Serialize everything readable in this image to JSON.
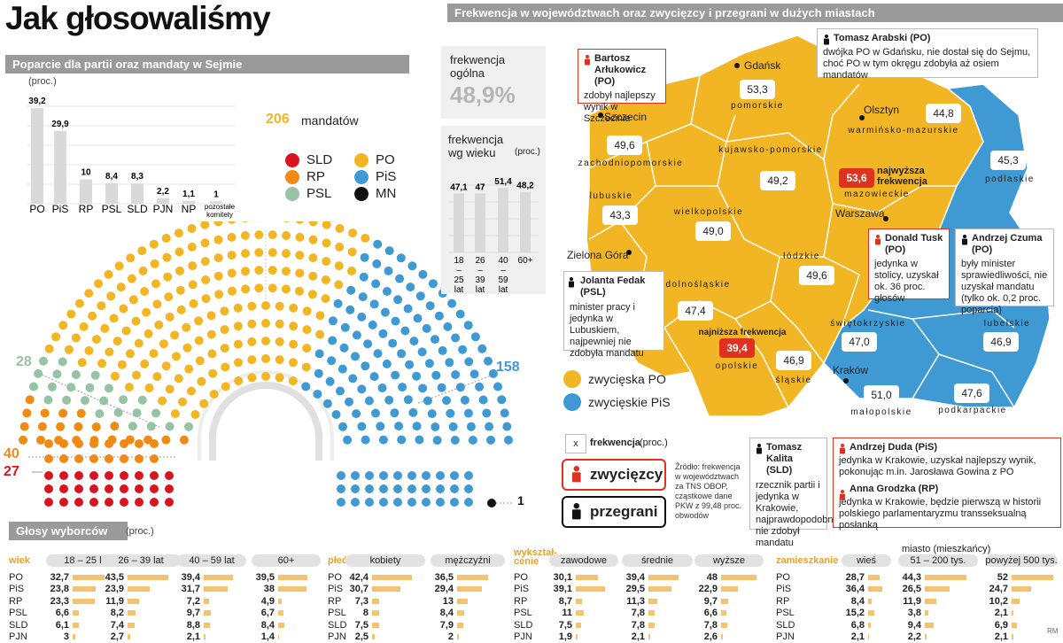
{
  "title": "Jak głosowaliśmy",
  "support_banner": "Poparcie dla partii oraz mandaty w Sejmie",
  "support_unit": "(proc.)",
  "colors": {
    "PO": "#f2b523",
    "PiS": "#3f9ad3",
    "SLD": "#d8141e",
    "RP": "#f08a14",
    "PSL": "#96c2a5",
    "MN": "#111111",
    "bar": "#d9d9d9",
    "light_po": "#f3c374"
  },
  "chart_data": [
    {
      "type": "bar",
      "categories": [
        "PO",
        "PiS",
        "RP",
        "PSL",
        "SLD",
        "PJN",
        "NP",
        "pozostałe komitety"
      ],
      "values": [
        39.2,
        29.9,
        10,
        8.4,
        8.3,
        2.2,
        1.1,
        1
      ],
      "value_labels": [
        "39,2",
        "29,9",
        "10",
        "8,4",
        "8,3",
        "2,2",
        "1,1",
        "1"
      ]
    },
    {
      "type": "seat-distribution",
      "parties": [
        "SLD",
        "RP",
        "PSL",
        "PO",
        "PiS",
        "MN"
      ],
      "seats": {
        "PO": 206,
        "PiS": 158,
        "RP": 40,
        "SLD": 27,
        "PSL": 28,
        "MN": 1
      },
      "mandates_label": "mandatów"
    },
    {
      "type": "bar",
      "categories": [
        "18 – 25 lat",
        "26 – 39 lat",
        "40 – 59 lat",
        "60+"
      ],
      "values": [
        47.1,
        47,
        51.4,
        48.2
      ],
      "value_labels": [
        "47,1",
        "47",
        "51,4",
        "48,2"
      ]
    },
    {
      "type": "map",
      "regions": [
        {
          "name": "pomorskie",
          "value": "53,3",
          "winner": "PO"
        },
        {
          "name": "zachodniopomorskie",
          "value": "49,6",
          "winner": "PO"
        },
        {
          "name": "warmińsko-mazurskie",
          "value": "44,8",
          "winner": "PO"
        },
        {
          "name": "kujawsko-pomorskie",
          "value": "49,2",
          "winner": "PO"
        },
        {
          "name": "podlaskie",
          "value": "45,3",
          "winner": "PiS"
        },
        {
          "name": "mazowieckie",
          "value": "53,6",
          "winner": "PO"
        },
        {
          "name": "lubuskie",
          "value": "43,3",
          "winner": "PO"
        },
        {
          "name": "wielkopolskie",
          "value": "49,0",
          "winner": "PO"
        },
        {
          "name": "łódzkie",
          "value": "49,6",
          "winner": "PO"
        },
        {
          "name": "dolnośląskie",
          "value": "47,4",
          "winner": "PO"
        },
        {
          "name": "opolskie",
          "value": "39,4",
          "winner": "PO"
        },
        {
          "name": "śląskie",
          "value": "46,9",
          "winner": "PO"
        },
        {
          "name": "świętokrzyskie",
          "value": "47,0",
          "winner": "PiS"
        },
        {
          "name": "lubelskie",
          "value": "46,9",
          "winner": "PiS"
        },
        {
          "name": "małopolskie",
          "value": "51,0",
          "winner": "PiS"
        },
        {
          "name": "podkarpackie",
          "value": "47,6",
          "winner": "PiS"
        }
      ]
    },
    {
      "type": "table",
      "groups": [
        {
          "category": "wiek",
          "headers": [
            "18 – 25 lat",
            "26 – 39 lat",
            "40 – 59 lat",
            "60+"
          ],
          "parties": [
            "PO",
            "PiS",
            "RP",
            "PSL",
            "SLD",
            "PJN"
          ],
          "values": [
            [
              "32,7",
              "43,5",
              "39,4",
              "39,5"
            ],
            [
              "23,8",
              "23,9",
              "31,7",
              "38"
            ],
            [
              "23,3",
              "11,9",
              "7,2",
              "4,9"
            ],
            [
              "6,6",
              "8,2",
              "9,7",
              "6,7"
            ],
            [
              "6,1",
              "7,4",
              "8,8",
              "8,4"
            ],
            [
              "3",
              "2,7",
              "2,1",
              "1,4"
            ]
          ]
        },
        {
          "category": "płeć",
          "headers": [
            "kobiety",
            "mężczyźni"
          ],
          "parties": [
            "PO",
            "PiS",
            "RP",
            "PSL",
            "SLD",
            "PJN"
          ],
          "values": [
            [
              "42,4",
              "36,5"
            ],
            [
              "30,7",
              "29,4"
            ],
            [
              "7,3",
              "13"
            ],
            [
              "8",
              "8,4"
            ],
            [
              "7,5",
              "7,9"
            ],
            [
              "2,5",
              "2"
            ]
          ]
        },
        {
          "category": "wykształ-cenie",
          "headers": [
            "zawodowe",
            "średnie",
            "wyższe"
          ],
          "parties": [
            "PO",
            "PiS",
            "RP",
            "PSL",
            "SLD",
            "PJN"
          ],
          "values": [
            [
              "30,1",
              "39,4",
              "48"
            ],
            [
              "39,1",
              "29,5",
              "22,9"
            ],
            [
              "8,7",
              "11,3",
              "9,7"
            ],
            [
              "11",
              "7,8",
              "6,6"
            ],
            [
              "7,5",
              "7,8",
              "7,8"
            ],
            [
              "1,9",
              "2,1",
              "2,6"
            ]
          ]
        },
        {
          "category": "zamieszkanie",
          "headers": [
            "wieś",
            "51 – 200 tys.",
            "powyżej 500 tys."
          ],
          "parties": [
            "PO",
            "PiS",
            "RP",
            "PSL",
            "SLD",
            "PJN"
          ],
          "values": [
            [
              "28,7",
              "44,3",
              "52"
            ],
            [
              "36,4",
              "26,5",
              "24,7"
            ],
            [
              "8,4",
              "11,9",
              "10,2"
            ],
            [
              "15,2",
              "3,8",
              "2,1"
            ],
            [
              "6,8",
              "9,4",
              "6,9"
            ],
            [
              "2,1",
              "2,2",
              "2,1"
            ]
          ]
        }
      ]
    }
  ],
  "legend": [
    {
      "party": "SLD"
    },
    {
      "party": "RP"
    },
    {
      "party": "PSL"
    },
    {
      "party": "PO"
    },
    {
      "party": "PiS"
    },
    {
      "party": "MN"
    }
  ],
  "map_banner": "Frekwencja w województwach oraz zwycięzcy i przegrani w dużych miastach",
  "turnout_overall_label": "frekwencja ogólna",
  "turnout_overall_value": "48,9%",
  "turnout_age_label": "frekwencja wg wieku",
  "turnout_age_unit": "(proc.)",
  "highest_label": "najwyższa frekwencja",
  "lowest_label": "najniższa frekwencja",
  "cities": [
    "Gdańsk",
    "Szczecin",
    "Olsztyn",
    "Warszawa",
    "Zielona Góra",
    "Kraków"
  ],
  "map_legend": {
    "po": "zwycięska PO",
    "pis": "zwycięskie PiS",
    "x": "x",
    "freq": "frekwencja",
    "freq_unit": "(proc.)",
    "winners": "zwycięzcy",
    "losers": "przegrani"
  },
  "source": "Źródło: frekwencja w województwach za TNS OBOP, cząstkowe dane PKW z 99,48 proc. obwodów",
  "callouts": {
    "arlukowicz": {
      "name": "Bartosz Arłukowicz (PO)",
      "text": "zdobył najlepszy wynik w Szczecinie"
    },
    "arabski": {
      "name": "Tomasz Arabski (PO)",
      "text": "dwójka PO w Gdańsku, nie dostał się do Sejmu, choć PO w tym okręgu zdobyła aż osiem mandatów"
    },
    "tusk": {
      "name": "Donald Tusk (PO)",
      "text": "jedynka w stolicy, uzyskał ok. 36 proc. głosów"
    },
    "czuma": {
      "name": "Andrzej Czuma (PO)",
      "text": "były minister sprawiedliwości, nie uzyskał mandatu (tylko ok. 0,2 proc. poparcia)"
    },
    "fedak": {
      "name": "Jolanta Fedak (PSL)",
      "text": "minister pracy i jedynka w Lubuskiem, najpewniej nie zdobyła mandatu"
    },
    "kalita": {
      "name": "Tomasz Kalita (SLD)",
      "text": "rzecznik partii i jedynka w Krakowie, najprawdopodobniej nie zdobył mandatu"
    },
    "duda": {
      "name": "Andrzej Duda (PiS)",
      "text": "jedynka w Krakowie, uzyskał najlepszy wynik, pokonując m.in. Jarosława Gowina z PO"
    },
    "grodzka": {
      "name": "Anna Grodzka (RP)",
      "text": "jedynka w Krakowie, będzie pierwszą w historii polskiego parlamentaryzmu transseksualną posłanką"
    }
  },
  "votes_banner": "Głosy wyborców",
  "votes_unit": "(proc.)",
  "city_header": "miasto (mieszkańcy)",
  "credit": "RM"
}
